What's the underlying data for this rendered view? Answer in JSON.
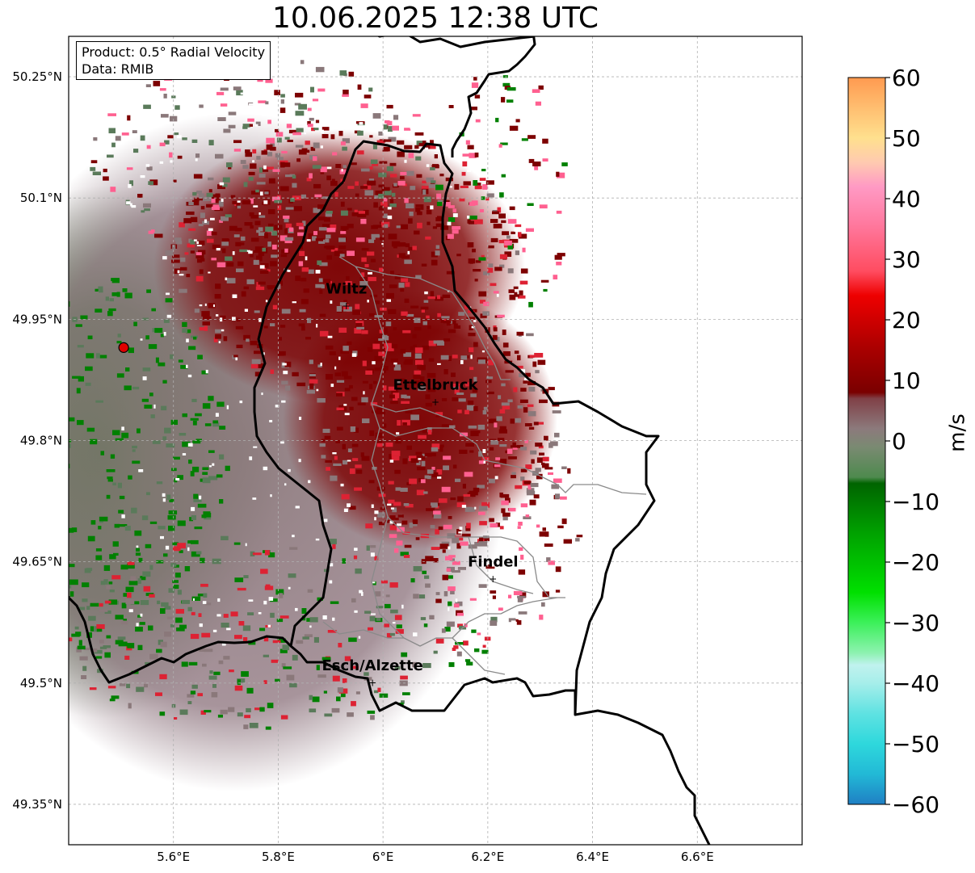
{
  "title": "10.06.2025 12:38 UTC",
  "info": {
    "product": "Product: 0.5° Radial Velocity",
    "data": "Data: RMIB"
  },
  "map": {
    "lon_range": [
      5.4,
      6.8
    ],
    "lat_range": [
      49.3,
      50.3
    ],
    "radar_site": {
      "lon": 5.505,
      "lat": 49.915
    },
    "x_ticks": [
      {
        "value": 5.6,
        "label": "5.6°E"
      },
      {
        "value": 5.8,
        "label": "5.8°E"
      },
      {
        "value": 6.0,
        "label": "6°E"
      },
      {
        "value": 6.2,
        "label": "6.2°E"
      },
      {
        "value": 6.4,
        "label": "6.4°E"
      },
      {
        "value": 6.6,
        "label": "6.6°E"
      }
    ],
    "y_ticks": [
      {
        "value": 50.25,
        "label": "50.25°N"
      },
      {
        "value": 50.1,
        "label": "50.1°N"
      },
      {
        "value": 49.95,
        "label": "49.95°N"
      },
      {
        "value": 49.8,
        "label": "49.8°N"
      },
      {
        "value": 49.65,
        "label": "49.65°N"
      },
      {
        "value": 49.5,
        "label": "49.5°N"
      },
      {
        "value": 49.35,
        "label": "49.35°N"
      }
    ],
    "cities": [
      {
        "name": "Wiltz",
        "lon": 5.93,
        "lat": 49.966
      },
      {
        "name": "Ettelbruck",
        "lon": 6.1,
        "lat": 49.847
      },
      {
        "name": "Findel",
        "lon": 6.21,
        "lat": 49.628
      },
      {
        "name": "Esch/Alzette",
        "lon": 5.98,
        "lat": 49.5
      }
    ]
  },
  "colorbar": {
    "label": "m/s",
    "min": -60,
    "max": 60,
    "ticks": [
      {
        "value": 60,
        "label": "60"
      },
      {
        "value": 50,
        "label": "50"
      },
      {
        "value": 40,
        "label": "40"
      },
      {
        "value": 30,
        "label": "30"
      },
      {
        "value": 20,
        "label": "20"
      },
      {
        "value": 10,
        "label": "10"
      },
      {
        "value": 0,
        "label": "0"
      },
      {
        "value": -10,
        "label": "−10"
      },
      {
        "value": -20,
        "label": "−20"
      },
      {
        "value": -30,
        "label": "−30"
      },
      {
        "value": -40,
        "label": "−40"
      },
      {
        "value": -50,
        "label": "−50"
      },
      {
        "value": -60,
        "label": "−60"
      }
    ],
    "stops": [
      {
        "v": -60,
        "color": "#1f7fc4"
      },
      {
        "v": -55,
        "color": "#22b9d6"
      },
      {
        "v": -50,
        "color": "#2ed8dc"
      },
      {
        "v": -45,
        "color": "#5fe2e2"
      },
      {
        "v": -40,
        "color": "#a6eeea"
      },
      {
        "v": -37,
        "color": "#c0f2ee"
      },
      {
        "v": -35,
        "color": "#8df2b0"
      },
      {
        "v": -30,
        "color": "#3cf05a"
      },
      {
        "v": -25,
        "color": "#00e000"
      },
      {
        "v": -15,
        "color": "#00a000"
      },
      {
        "v": -7,
        "color": "#006400"
      },
      {
        "v": -6,
        "color": "#4e8a4e"
      },
      {
        "v": -1,
        "color": "#7a8a72"
      },
      {
        "v": 2,
        "color": "#8c7a7c"
      },
      {
        "v": 7,
        "color": "#804047"
      },
      {
        "v": 8,
        "color": "#7a0000"
      },
      {
        "v": 15,
        "color": "#a80000"
      },
      {
        "v": 24,
        "color": "#ee0000"
      },
      {
        "v": 28,
        "color": "#ff4c60"
      },
      {
        "v": 36,
        "color": "#ff7aa0"
      },
      {
        "v": 42,
        "color": "#ff9ac4"
      },
      {
        "v": 46,
        "color": "#ffcab0"
      },
      {
        "v": 50,
        "color": "#ffe08e"
      },
      {
        "v": 55,
        "color": "#ffbe70"
      },
      {
        "v": 60,
        "color": "#ff9a50"
      }
    ]
  },
  "colors": {
    "inbound_strong": "#008000",
    "inbound_weak": "#5a7a5a",
    "neutral": "#8a787a",
    "outbound": "#7d0000",
    "outbound_bright": "#dd2233",
    "radar_marker": "#e00000"
  }
}
